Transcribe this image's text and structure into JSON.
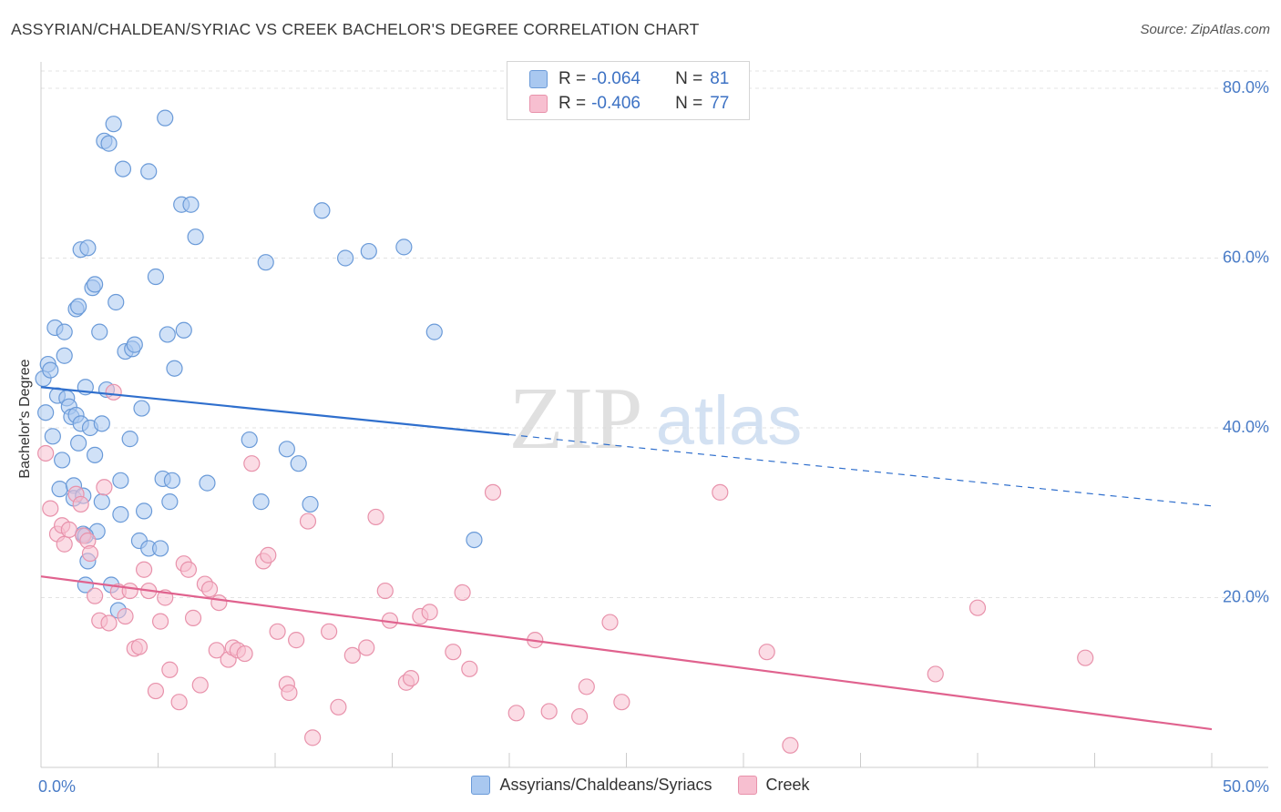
{
  "header": {
    "title": "ASSYRIAN/CHALDEAN/SYRIAC VS CREEK BACHELOR'S DEGREE CORRELATION CHART",
    "source": "Source: ZipAtlas.com"
  },
  "watermark": {
    "zip": "ZIP",
    "atlas": "atlas"
  },
  "legend": {
    "rows": [
      {
        "r_label": "R =",
        "r_value": "-0.064",
        "n_label": "N =",
        "n_value": "81",
        "color": "#a9c8f0",
        "border": "#6a9ad8"
      },
      {
        "r_label": "R =",
        "r_value": "-0.406",
        "n_label": "N =",
        "n_value": "77",
        "color": "#f7bfd0",
        "border": "#e892ab"
      }
    ]
  },
  "bottom_legend": [
    {
      "label": "Assyrians/Chaldeans/Syriacs",
      "color": "#a9c8f0",
      "border": "#6a9ad8"
    },
    {
      "label": "Creek",
      "color": "#f7bfd0",
      "border": "#e892ab"
    }
  ],
  "chart_data": {
    "type": "scatter",
    "title": "ASSYRIAN/CHALDEAN/SYRIAC VS CREEK BACHELOR'S DEGREE CORRELATION CHART",
    "xlabel": "",
    "ylabel": "Bachelor's Degree",
    "xlim": [
      0,
      50
    ],
    "ylim": [
      0,
      82
    ],
    "x_tick_labels": [
      "0.0%",
      "50.0%"
    ],
    "y_ticks": [
      20,
      40,
      60,
      80
    ],
    "y_tick_labels": [
      "20.0%",
      "40.0%",
      "60.0%",
      "80.0%"
    ],
    "grid": true,
    "legend_position": "top-center",
    "series": [
      {
        "name": "Assyrians/Chaldeans/Syriacs",
        "color": "#6a9ad8",
        "fill": "#a9c8f0",
        "trend": {
          "x": [
            0,
            20
          ],
          "y": [
            44.8,
            39.2
          ],
          "dashed_to_x": 50,
          "dashed_to_y": 30.8,
          "color": "#2f6fcd"
        },
        "points": [
          [
            0.1,
            45.8
          ],
          [
            0.2,
            41.8
          ],
          [
            0.3,
            47.5
          ],
          [
            0.4,
            46.8
          ],
          [
            0.5,
            39.0
          ],
          [
            0.6,
            51.8
          ],
          [
            0.7,
            43.8
          ],
          [
            0.8,
            32.8
          ],
          [
            0.9,
            36.2
          ],
          [
            1.0,
            48.5
          ],
          [
            1.0,
            51.3
          ],
          [
            1.1,
            43.5
          ],
          [
            1.2,
            42.5
          ],
          [
            1.3,
            41.3
          ],
          [
            1.4,
            33.2
          ],
          [
            1.4,
            31.7
          ],
          [
            1.5,
            41.5
          ],
          [
            1.5,
            54.0
          ],
          [
            1.6,
            38.2
          ],
          [
            1.6,
            54.3
          ],
          [
            1.7,
            40.5
          ],
          [
            1.7,
            61.0
          ],
          [
            1.8,
            27.5
          ],
          [
            1.8,
            32.0
          ],
          [
            1.9,
            44.8
          ],
          [
            1.9,
            21.5
          ],
          [
            2.0,
            24.3
          ],
          [
            2.0,
            61.2
          ],
          [
            2.1,
            40.0
          ],
          [
            2.2,
            56.5
          ],
          [
            2.3,
            56.9
          ],
          [
            2.3,
            36.8
          ],
          [
            2.4,
            27.8
          ],
          [
            2.5,
            51.3
          ],
          [
            2.6,
            40.5
          ],
          [
            2.6,
            31.3
          ],
          [
            2.7,
            73.8
          ],
          [
            2.8,
            44.5
          ],
          [
            2.9,
            73.5
          ],
          [
            3.0,
            21.5
          ],
          [
            3.1,
            75.8
          ],
          [
            3.2,
            54.8
          ],
          [
            3.3,
            18.5
          ],
          [
            3.4,
            33.8
          ],
          [
            3.4,
            29.8
          ],
          [
            3.5,
            70.5
          ],
          [
            3.6,
            49.0
          ],
          [
            3.8,
            38.7
          ],
          [
            3.9,
            49.3
          ],
          [
            4.0,
            49.8
          ],
          [
            4.2,
            26.7
          ],
          [
            4.3,
            42.3
          ],
          [
            4.4,
            30.2
          ],
          [
            4.6,
            25.8
          ],
          [
            4.9,
            57.8
          ],
          [
            5.1,
            25.8
          ],
          [
            5.2,
            34.0
          ],
          [
            5.3,
            76.5
          ],
          [
            5.4,
            51.0
          ],
          [
            5.5,
            31.3
          ],
          [
            5.6,
            33.8
          ],
          [
            5.7,
            47.0
          ],
          [
            6.0,
            66.3
          ],
          [
            6.1,
            51.5
          ],
          [
            6.4,
            66.3
          ],
          [
            6.6,
            62.5
          ],
          [
            7.1,
            33.5
          ],
          [
            8.9,
            38.6
          ],
          [
            9.4,
            31.3
          ],
          [
            9.6,
            59.5
          ],
          [
            10.5,
            37.5
          ],
          [
            11.0,
            35.8
          ],
          [
            11.5,
            31.0
          ],
          [
            12.0,
            65.6
          ],
          [
            13.0,
            60.0
          ],
          [
            14.0,
            60.8
          ],
          [
            15.5,
            61.3
          ],
          [
            16.8,
            51.3
          ],
          [
            18.5,
            26.8
          ],
          [
            4.6,
            70.2
          ],
          [
            1.9,
            27.3
          ]
        ]
      },
      {
        "name": "Creek",
        "color": "#e892ab",
        "fill": "#f7bfd0",
        "trend": {
          "x": [
            0,
            50
          ],
          "y": [
            22.5,
            4.5
          ],
          "color": "#e0628e"
        },
        "points": [
          [
            0.2,
            37.0
          ],
          [
            0.4,
            30.5
          ],
          [
            0.7,
            27.5
          ],
          [
            0.9,
            28.5
          ],
          [
            1.0,
            26.3
          ],
          [
            1.2,
            28.0
          ],
          [
            1.5,
            32.2
          ],
          [
            1.7,
            31.0
          ],
          [
            1.8,
            27.3
          ],
          [
            2.0,
            26.7
          ],
          [
            2.1,
            25.2
          ],
          [
            2.3,
            20.2
          ],
          [
            2.5,
            17.3
          ],
          [
            2.7,
            33.0
          ],
          [
            2.9,
            17.0
          ],
          [
            3.1,
            44.2
          ],
          [
            3.3,
            20.7
          ],
          [
            3.6,
            17.8
          ],
          [
            3.8,
            20.8
          ],
          [
            4.0,
            14.0
          ],
          [
            4.2,
            14.2
          ],
          [
            4.4,
            23.3
          ],
          [
            4.6,
            20.8
          ],
          [
            4.9,
            9.0
          ],
          [
            5.1,
            17.2
          ],
          [
            5.3,
            20.0
          ],
          [
            5.5,
            11.5
          ],
          [
            5.9,
            7.7
          ],
          [
            6.1,
            24.0
          ],
          [
            6.3,
            23.3
          ],
          [
            6.5,
            17.6
          ],
          [
            6.8,
            9.7
          ],
          [
            7.0,
            21.6
          ],
          [
            7.2,
            21.0
          ],
          [
            7.5,
            13.8
          ],
          [
            7.6,
            19.4
          ],
          [
            8.0,
            12.7
          ],
          [
            8.2,
            14.1
          ],
          [
            8.4,
            13.8
          ],
          [
            8.7,
            13.4
          ],
          [
            9.0,
            35.8
          ],
          [
            9.5,
            24.3
          ],
          [
            9.7,
            25.0
          ],
          [
            10.1,
            16.0
          ],
          [
            10.5,
            9.8
          ],
          [
            10.6,
            8.8
          ],
          [
            10.9,
            15.0
          ],
          [
            11.4,
            29.0
          ],
          [
            11.6,
            3.5
          ],
          [
            12.3,
            16.0
          ],
          [
            12.7,
            7.1
          ],
          [
            13.3,
            13.2
          ],
          [
            13.9,
            14.1
          ],
          [
            14.3,
            29.5
          ],
          [
            14.7,
            20.8
          ],
          [
            14.9,
            17.3
          ],
          [
            15.6,
            10.0
          ],
          [
            15.8,
            10.5
          ],
          [
            16.2,
            17.8
          ],
          [
            16.6,
            18.3
          ],
          [
            17.6,
            13.6
          ],
          [
            18.0,
            20.6
          ],
          [
            18.3,
            11.6
          ],
          [
            19.3,
            32.4
          ],
          [
            20.3,
            6.4
          ],
          [
            21.1,
            15.0
          ],
          [
            21.7,
            6.6
          ],
          [
            23.0,
            6.0
          ],
          [
            23.3,
            9.5
          ],
          [
            24.3,
            17.1
          ],
          [
            24.8,
            7.7
          ],
          [
            29.0,
            32.4
          ],
          [
            31.0,
            13.6
          ],
          [
            32.0,
            2.6
          ],
          [
            38.2,
            11.0
          ],
          [
            40.0,
            18.8
          ],
          [
            44.6,
            12.9
          ]
        ]
      }
    ]
  }
}
